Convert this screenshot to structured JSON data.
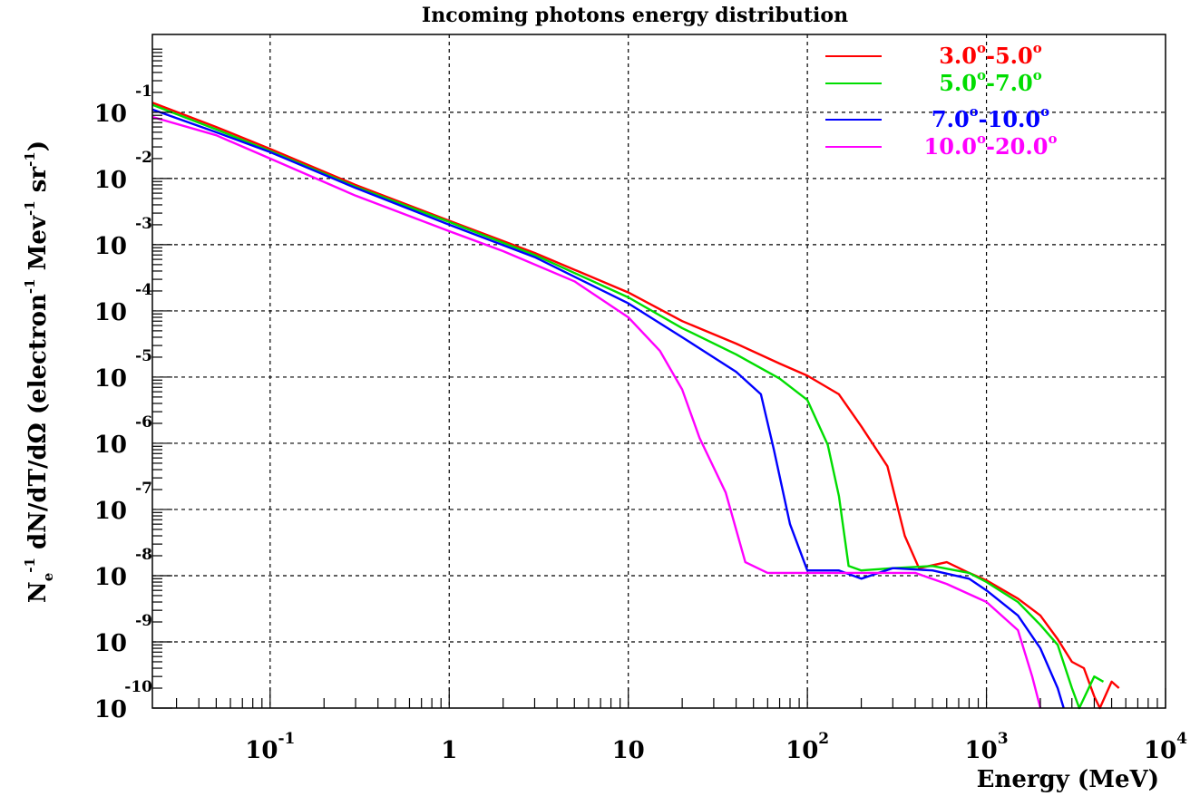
{
  "chart_data": {
    "type": "line",
    "title": "Incoming photons energy distribution",
    "xlabel": "Energy (MeV)",
    "ylabel_parts": {
      "n": "N",
      "n_sub": "e",
      "n_sup": "-1",
      "body": " dN/dT/dΩ (electron",
      "sup1": "-1",
      "mev": " Mev",
      "sup2": "-1",
      "sr": " sr",
      "sup3": "-1",
      "close": ")"
    },
    "x_scale": "log",
    "y_scale": "log",
    "xlim": [
      0.022,
      10000
    ],
    "ylim": [
      1e-10,
      1.5
    ],
    "grid": true,
    "legend_position": "top-right",
    "x_ticks": [
      {
        "value": 0.1,
        "base": "10",
        "exp": "-1"
      },
      {
        "value": 1,
        "base": "1",
        "exp": ""
      },
      {
        "value": 10,
        "base": "10",
        "exp": ""
      },
      {
        "value": 100,
        "base": "10",
        "exp": "2"
      },
      {
        "value": 1000,
        "base": "10",
        "exp": "3"
      },
      {
        "value": 10000,
        "base": "10",
        "exp": "4"
      }
    ],
    "y_ticks": [
      {
        "value": 0.1,
        "base": "10",
        "exp": "-1"
      },
      {
        "value": 0.01,
        "base": "10",
        "exp": "-2"
      },
      {
        "value": 0.001,
        "base": "10",
        "exp": "-3"
      },
      {
        "value": 0.0001,
        "base": "10",
        "exp": "-4"
      },
      {
        "value": 1e-05,
        "base": "10",
        "exp": "-5"
      },
      {
        "value": 1e-06,
        "base": "10",
        "exp": "-6"
      },
      {
        "value": 1e-07,
        "base": "10",
        "exp": "-7"
      },
      {
        "value": 1e-08,
        "base": "10",
        "exp": "-8"
      },
      {
        "value": 1e-09,
        "base": "10",
        "exp": "-9"
      },
      {
        "value": 1e-10,
        "base": "10",
        "exp": "-10"
      }
    ],
    "series": [
      {
        "name": "3.0°-5.0°",
        "legend": {
          "a": "3.0",
          "b": "-5.0"
        },
        "color": "#ff0000",
        "points": [
          [
            0.022,
            0.14
          ],
          [
            0.05,
            0.06
          ],
          [
            0.1,
            0.028
          ],
          [
            0.3,
            0.008
          ],
          [
            1,
            0.0023
          ],
          [
            3,
            0.00075
          ],
          [
            10,
            0.00019
          ],
          [
            20,
            7e-05
          ],
          [
            40,
            3.2e-05
          ],
          [
            70,
            1.6e-05
          ],
          [
            100,
            1.05e-05
          ],
          [
            150,
            5.5e-06
          ],
          [
            200,
            1.8e-06
          ],
          [
            280,
            4.5e-07
          ],
          [
            350,
            4e-08
          ],
          [
            420,
            1.3e-08
          ],
          [
            600,
            1.6e-08
          ],
          [
            800,
            1.1e-08
          ],
          [
            1000,
            8.5e-09
          ],
          [
            1500,
            4.5e-09
          ],
          [
            2000,
            2.5e-09
          ],
          [
            2500,
            1.1e-09
          ],
          [
            3000,
            5e-10
          ],
          [
            3500,
            4e-10
          ],
          [
            4000,
            1.5e-10
          ],
          [
            4300,
            1e-10
          ],
          [
            5000,
            2.5e-10
          ],
          [
            5500,
            2e-10
          ]
        ]
      },
      {
        "name": "5.0°-7.0°",
        "legend": {
          "a": "5.0",
          "b": "-7.0"
        },
        "color": "#00dd00",
        "points": [
          [
            0.022,
            0.13
          ],
          [
            0.05,
            0.055
          ],
          [
            0.1,
            0.026
          ],
          [
            0.3,
            0.0075
          ],
          [
            1,
            0.0022
          ],
          [
            3,
            0.0007
          ],
          [
            10,
            0.00016
          ],
          [
            20,
            5.5e-05
          ],
          [
            40,
            2.2e-05
          ],
          [
            70,
            9.5e-06
          ],
          [
            100,
            4.5e-06
          ],
          [
            130,
            9.5e-07
          ],
          [
            150,
            1.6e-07
          ],
          [
            170,
            1.4e-08
          ],
          [
            200,
            1.2e-08
          ],
          [
            300,
            1.3e-08
          ],
          [
            500,
            1.4e-08
          ],
          [
            800,
            1.1e-08
          ],
          [
            1000,
            8e-09
          ],
          [
            1500,
            4e-09
          ],
          [
            2000,
            1.8e-09
          ],
          [
            2500,
            9e-10
          ],
          [
            3000,
            2e-10
          ],
          [
            3300,
            1e-10
          ],
          [
            4000,
            3e-10
          ],
          [
            4500,
            2.5e-10
          ]
        ]
      },
      {
        "name": "7.0°-10.0°",
        "legend": {
          "a": "7.0",
          "b": "-10.0"
        },
        "color": "#0000ff",
        "points": [
          [
            0.022,
            0.11
          ],
          [
            0.05,
            0.05
          ],
          [
            0.1,
            0.025
          ],
          [
            0.3,
            0.0072
          ],
          [
            1,
            0.002
          ],
          [
            3,
            0.00065
          ],
          [
            10,
            0.00013
          ],
          [
            20,
            4e-05
          ],
          [
            40,
            1.2e-05
          ],
          [
            55,
            5.5e-06
          ],
          [
            65,
            8e-07
          ],
          [
            80,
            6e-08
          ],
          [
            100,
            1.2e-08
          ],
          [
            150,
            1.2e-08
          ],
          [
            200,
            9e-09
          ],
          [
            300,
            1.3e-08
          ],
          [
            500,
            1.2e-08
          ],
          [
            800,
            9e-09
          ],
          [
            1000,
            6e-09
          ],
          [
            1500,
            2.5e-09
          ],
          [
            2000,
            8e-10
          ],
          [
            2500,
            2e-10
          ],
          [
            2700,
            1e-10
          ]
        ]
      },
      {
        "name": "10.0°-20.0°",
        "legend": {
          "a": "10.0",
          "b": "-20.0"
        },
        "color": "#ff00ff",
        "points": [
          [
            0.022,
            0.085
          ],
          [
            0.05,
            0.045
          ],
          [
            0.1,
            0.02
          ],
          [
            0.3,
            0.0055
          ],
          [
            1,
            0.0016
          ],
          [
            2,
            0.0008
          ],
          [
            5,
            0.00028
          ],
          [
            10,
            8e-05
          ],
          [
            15,
            2.5e-05
          ],
          [
            20,
            6.5e-06
          ],
          [
            25,
            1.2e-06
          ],
          [
            35,
            1.8e-07
          ],
          [
            45,
            1.6e-08
          ],
          [
            60,
            1.1e-08
          ],
          [
            100,
            1.1e-08
          ],
          [
            200,
            1.1e-08
          ],
          [
            400,
            1.1e-08
          ],
          [
            600,
            7.5e-09
          ],
          [
            1000,
            4e-09
          ],
          [
            1500,
            1.5e-09
          ],
          [
            1800,
            3e-10
          ],
          [
            2000,
            1e-10
          ]
        ]
      }
    ]
  }
}
